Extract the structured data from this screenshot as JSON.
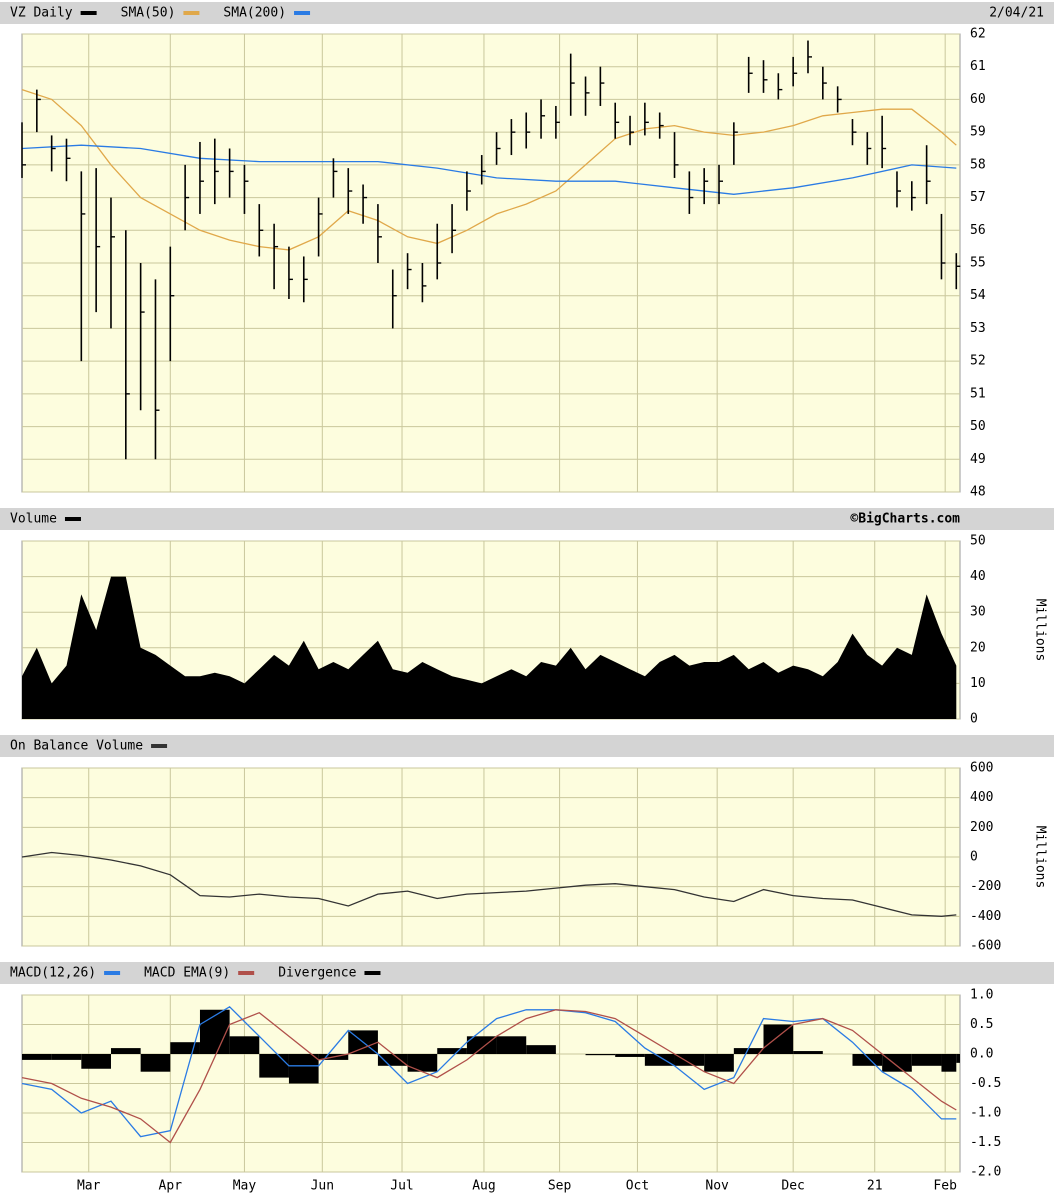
{
  "chart_data": [
    {
      "type": "ohlc",
      "title": "VZ Daily",
      "date": "2/04/21",
      "color": "#000000",
      "x": [
        0,
        4,
        8,
        12,
        16,
        20,
        24,
        28,
        32,
        36,
        40,
        44,
        48,
        52,
        56,
        60,
        64,
        68,
        72,
        76,
        80,
        84,
        88,
        92,
        96,
        100,
        104,
        108,
        112,
        116,
        120,
        124,
        128,
        132,
        136,
        140,
        144,
        148,
        152,
        156,
        160,
        164,
        168,
        172,
        176,
        180,
        184,
        188,
        192,
        196,
        200,
        204,
        208,
        212,
        216,
        220,
        224,
        228,
        232,
        236,
        240,
        244,
        248,
        252
      ],
      "high": [
        59.3,
        60.3,
        58.9,
        58.8,
        57.8,
        57.9,
        57.0,
        56.0,
        55.0,
        54.5,
        55.5,
        58.0,
        58.7,
        58.8,
        58.5,
        58.0,
        56.8,
        56.2,
        55.5,
        55.2,
        57.0,
        58.2,
        57.9,
        57.4,
        56.8,
        54.8,
        55.3,
        55.0,
        56.2,
        56.8,
        57.8,
        58.3,
        59.0,
        59.4,
        59.6,
        60.0,
        59.8,
        61.4,
        60.7,
        61.0,
        59.9,
        59.5,
        59.9,
        59.6,
        59.0,
        57.8,
        57.9,
        58.0,
        59.3,
        61.3,
        61.2,
        60.8,
        61.3,
        61.8,
        61.0,
        60.4,
        59.4,
        59.0,
        59.5,
        57.8,
        57.5,
        58.6,
        56.5,
        55.3
      ],
      "low": [
        57.6,
        59.0,
        57.8,
        57.5,
        52.0,
        53.5,
        53.0,
        49.0,
        50.5,
        49.0,
        52.0,
        56.0,
        56.5,
        56.8,
        57.0,
        56.5,
        55.2,
        54.2,
        53.9,
        53.8,
        55.2,
        57.0,
        56.5,
        56.2,
        55.0,
        53.0,
        54.2,
        53.8,
        54.5,
        55.3,
        56.6,
        57.4,
        58.0,
        58.3,
        58.5,
        58.8,
        58.8,
        59.5,
        59.5,
        59.8,
        58.8,
        58.6,
        58.9,
        58.8,
        57.6,
        56.5,
        56.8,
        56.8,
        58.0,
        60.2,
        60.2,
        60.0,
        60.4,
        60.8,
        60.0,
        59.6,
        58.6,
        58.0,
        57.9,
        56.7,
        56.6,
        56.8,
        54.5,
        54.2
      ],
      "close": [
        58.0,
        60.0,
        58.5,
        58.2,
        56.5,
        55.5,
        55.8,
        51.0,
        53.5,
        50.5,
        54.0,
        57.0,
        57.5,
        57.8,
        57.8,
        57.5,
        56.0,
        55.5,
        54.5,
        54.5,
        56.5,
        57.8,
        57.2,
        57.0,
        55.8,
        54.0,
        54.8,
        54.3,
        55.0,
        56.0,
        57.2,
        57.8,
        58.5,
        59.0,
        59.0,
        59.5,
        59.3,
        60.5,
        60.2,
        60.5,
        59.3,
        59.0,
        59.3,
        59.2,
        58.0,
        57.0,
        57.5,
        57.5,
        59.0,
        60.8,
        60.6,
        60.3,
        60.8,
        61.3,
        60.5,
        60.0,
        59.0,
        58.5,
        58.5,
        57.2,
        57.0,
        57.5,
        55.0,
        54.9
      ],
      "series": [
        {
          "name": "SMA(50)",
          "color": "#e0a84a",
          "x": [
            0,
            8,
            16,
            24,
            32,
            40,
            48,
            56,
            64,
            72,
            80,
            88,
            96,
            104,
            112,
            120,
            128,
            136,
            144,
            152,
            160,
            168,
            176,
            184,
            192,
            200,
            208,
            216,
            224,
            232,
            240,
            248,
            252
          ],
          "values": [
            60.3,
            60.0,
            59.2,
            58.0,
            57.0,
            56.5,
            56.0,
            55.7,
            55.5,
            55.4,
            55.8,
            56.6,
            56.3,
            55.8,
            55.6,
            56.0,
            56.5,
            56.8,
            57.2,
            58.0,
            58.8,
            59.1,
            59.2,
            59.0,
            58.9,
            59.0,
            59.2,
            59.5,
            59.6,
            59.7,
            59.7,
            59.0,
            58.6
          ]
        },
        {
          "name": "SMA(200)",
          "color": "#2a7be4",
          "x": [
            0,
            16,
            32,
            48,
            64,
            80,
            96,
            112,
            128,
            144,
            160,
            176,
            192,
            208,
            224,
            240,
            252
          ],
          "values": [
            58.5,
            58.6,
            58.5,
            58.2,
            58.1,
            58.1,
            58.1,
            57.9,
            57.6,
            57.5,
            57.5,
            57.3,
            57.1,
            57.3,
            57.6,
            58.0,
            57.9
          ]
        }
      ],
      "ylim": [
        48,
        62
      ],
      "yticks": [
        48,
        49,
        50,
        51,
        52,
        53,
        54,
        55,
        56,
        57,
        58,
        59,
        60,
        61,
        62
      ]
    },
    {
      "type": "area",
      "title": "Volume",
      "credit": "©BigCharts.com",
      "ylabel": "Millions",
      "color": "#000000",
      "x": [
        0,
        4,
        8,
        12,
        16,
        20,
        24,
        28,
        32,
        36,
        40,
        44,
        48,
        52,
        56,
        60,
        64,
        68,
        72,
        76,
        80,
        84,
        88,
        92,
        96,
        100,
        104,
        108,
        112,
        116,
        120,
        124,
        128,
        132,
        136,
        140,
        144,
        148,
        152,
        156,
        160,
        164,
        168,
        172,
        176,
        180,
        184,
        188,
        192,
        196,
        200,
        204,
        208,
        212,
        216,
        220,
        224,
        228,
        232,
        236,
        240,
        244,
        248,
        252
      ],
      "values": [
        12,
        20,
        10,
        15,
        35,
        25,
        40,
        40,
        20,
        18,
        15,
        12,
        12,
        13,
        12,
        10,
        14,
        18,
        15,
        22,
        14,
        16,
        14,
        18,
        22,
        14,
        13,
        16,
        14,
        12,
        11,
        10,
        12,
        14,
        12,
        16,
        15,
        20,
        14,
        18,
        16,
        14,
        12,
        16,
        18,
        15,
        16,
        16,
        18,
        14,
        16,
        13,
        15,
        14,
        12,
        16,
        24,
        18,
        15,
        20,
        18,
        35,
        24,
        15
      ],
      "ylim": [
        0,
        50
      ],
      "yticks": [
        0,
        10,
        20,
        30,
        40,
        50
      ]
    },
    {
      "type": "line",
      "title": "On Balance Volume",
      "ylabel": "Millions",
      "color": "#333333",
      "x": [
        0,
        8,
        16,
        24,
        32,
        40,
        48,
        56,
        64,
        72,
        80,
        88,
        96,
        104,
        112,
        120,
        128,
        136,
        144,
        152,
        160,
        168,
        176,
        184,
        192,
        200,
        208,
        216,
        224,
        232,
        240,
        248,
        252
      ],
      "values": [
        0,
        30,
        10,
        -20,
        -60,
        -120,
        -260,
        -270,
        -250,
        -270,
        -280,
        -330,
        -250,
        -230,
        -280,
        -250,
        -240,
        -230,
        -210,
        -190,
        -180,
        -200,
        -220,
        -270,
        -300,
        -220,
        -260,
        -280,
        -290,
        -340,
        -390,
        -400,
        -390
      ],
      "ylim": [
        -600,
        600
      ],
      "yticks": [
        -600,
        -400,
        -200,
        0,
        200,
        400,
        600
      ]
    },
    {
      "type": "macd",
      "x": [
        0,
        8,
        16,
        24,
        32,
        40,
        48,
        56,
        64,
        72,
        80,
        88,
        96,
        104,
        112,
        120,
        128,
        136,
        144,
        152,
        160,
        168,
        176,
        184,
        192,
        200,
        208,
        216,
        224,
        232,
        240,
        248,
        252
      ],
      "series": [
        {
          "name": "MACD(12,26)",
          "color": "#2a7be4",
          "type": "line",
          "values": [
            -0.5,
            -0.6,
            -1.0,
            -0.8,
            -1.4,
            -1.3,
            0.5,
            0.8,
            0.3,
            -0.2,
            -0.2,
            0.4,
            0.0,
            -0.5,
            -0.3,
            0.2,
            0.6,
            0.75,
            0.75,
            0.7,
            0.55,
            0.1,
            -0.2,
            -0.6,
            -0.4,
            0.6,
            0.55,
            0.6,
            0.2,
            -0.3,
            -0.6,
            -1.1,
            -1.1
          ]
        },
        {
          "name": "MACD EMA(9)",
          "color": "#b0504a",
          "type": "line",
          "values": [
            -0.4,
            -0.5,
            -0.75,
            -0.9,
            -1.1,
            -1.5,
            -0.6,
            0.5,
            0.7,
            0.3,
            -0.1,
            0.0,
            0.2,
            -0.2,
            -0.4,
            -0.1,
            0.3,
            0.6,
            0.75,
            0.72,
            0.6,
            0.3,
            0.0,
            -0.3,
            -0.5,
            0.1,
            0.5,
            0.6,
            0.4,
            0.0,
            -0.4,
            -0.8,
            -0.95
          ]
        },
        {
          "name": "Divergence",
          "color": "#000000",
          "type": "bar",
          "values": [
            -0.1,
            -0.1,
            -0.25,
            0.1,
            -0.3,
            0.2,
            0.75,
            0.3,
            -0.4,
            -0.5,
            -0.1,
            0.4,
            -0.2,
            -0.3,
            0.1,
            0.3,
            0.3,
            0.15,
            0.0,
            -0.02,
            -0.05,
            -0.2,
            -0.2,
            -0.3,
            0.1,
            0.5,
            0.05,
            0.0,
            -0.2,
            -0.3,
            -0.2,
            -0.3,
            -0.15
          ]
        }
      ],
      "xlim": [
        0,
        253
      ],
      "xticks": [
        {
          "value": 18,
          "label": "Mar"
        },
        {
          "value": 40,
          "label": "Apr"
        },
        {
          "value": 60,
          "label": "May"
        },
        {
          "value": 81,
          "label": "Jun"
        },
        {
          "value": 102.5,
          "label": "Jul"
        },
        {
          "value": 124.6,
          "label": "Aug"
        },
        {
          "value": 145,
          "label": "Sep"
        },
        {
          "value": 166,
          "label": "Oct"
        },
        {
          "value": 187.5,
          "label": "Nov"
        },
        {
          "value": 208,
          "label": "Dec"
        },
        {
          "value": 230,
          "label": "21"
        },
        {
          "value": 249,
          "label": "Feb"
        }
      ],
      "ylim": [
        -2,
        1
      ],
      "yticks": [
        {
          "value": -2,
          "label": "-2.0"
        },
        -1.5,
        {
          "value": -1,
          "label": "-1.0"
        },
        -0.5,
        {
          "value": 0,
          "label": "0.0"
        },
        0.5,
        {
          "value": 1,
          "label": "1.0"
        }
      ]
    }
  ]
}
